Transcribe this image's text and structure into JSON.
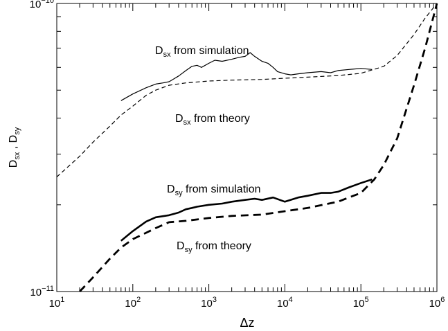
{
  "chart_data": {
    "type": "line",
    "xlabel": "Δz",
    "ylabel": {
      "D": "D",
      "sx": "sx",
      "sep": " , ",
      "sy": "sy"
    },
    "x_scale": "log",
    "y_scale": "log",
    "xlim": [
      10,
      1000000
    ],
    "ylim": [
      1e-11,
      1e-10
    ],
    "x_ticks": [
      {
        "value": 10,
        "base": "10",
        "exp": "1"
      },
      {
        "value": 100,
        "base": "10",
        "exp": "2"
      },
      {
        "value": 1000,
        "base": "10",
        "exp": "3"
      },
      {
        "value": 10000,
        "base": "10",
        "exp": "4"
      },
      {
        "value": 100000,
        "base": "10",
        "exp": "5"
      },
      {
        "value": 1000000,
        "base": "10",
        "exp": "6"
      }
    ],
    "y_ticks": [
      {
        "value": 1e-11,
        "base": "10",
        "exp": "−11"
      },
      {
        "value": 1e-10,
        "base": "10",
        "exp": "−10"
      }
    ],
    "grid": false,
    "series": [
      {
        "style": "solid-thin",
        "x": [
          70,
          100,
          150,
          200,
          250,
          300,
          400,
          500,
          600,
          700,
          800,
          1000,
          1200,
          1500,
          2000,
          2500,
          3000,
          3500,
          4000,
          5000,
          6000,
          7000,
          8000,
          10000,
          12000,
          15000,
          20000,
          30000,
          40000,
          50000,
          70000,
          100000,
          140000
        ],
        "y": [
          4.6e-11,
          4.85e-11,
          5.1e-11,
          5.25e-11,
          5.3e-11,
          5.35e-11,
          5.6e-11,
          5.85e-11,
          6.05e-11,
          6.1e-11,
          6e-11,
          6.2e-11,
          6.35e-11,
          6.3e-11,
          6.4e-11,
          6.5e-11,
          6.55e-11,
          6.75e-11,
          6.55e-11,
          6.3e-11,
          6.2e-11,
          6e-11,
          5.8e-11,
          5.7e-11,
          5.65e-11,
          5.7e-11,
          5.75e-11,
          5.8e-11,
          5.75e-11,
          5.85e-11,
          5.9e-11,
          5.95e-11,
          5.9e-11
        ]
      },
      {
        "style": "dashed-thin",
        "x": [
          10,
          20,
          30,
          50,
          70,
          100,
          150,
          200,
          300,
          500,
          1000,
          2000,
          5000,
          10000,
          20000,
          50000,
          100000,
          200000,
          300000,
          500000,
          700000,
          1000000
        ],
        "y": [
          2.5e-11,
          2.95e-11,
          3.3e-11,
          3.75e-11,
          4.1e-11,
          4.4e-11,
          4.8e-11,
          5e-11,
          5.2e-11,
          5.3e-11,
          5.38e-11,
          5.42e-11,
          5.45e-11,
          5.5e-11,
          5.55e-11,
          5.62e-11,
          5.72e-11,
          6.05e-11,
          6.6e-11,
          7.8e-11,
          8.9e-11,
          1e-10
        ]
      },
      {
        "style": "solid-thick",
        "x": [
          70,
          100,
          150,
          200,
          300,
          400,
          500,
          600,
          700,
          1000,
          1500,
          2000,
          3000,
          4000,
          5000,
          7000,
          10000,
          15000,
          20000,
          30000,
          40000,
          50000,
          70000,
          100000,
          140000
        ],
        "y": [
          1.5e-11,
          1.62e-11,
          1.75e-11,
          1.81e-11,
          1.84e-11,
          1.88e-11,
          1.93e-11,
          1.95e-11,
          1.97e-11,
          2e-11,
          2.02e-11,
          2.05e-11,
          2.08e-11,
          2.1e-11,
          2.08e-11,
          2.12e-11,
          2.05e-11,
          2.12e-11,
          2.15e-11,
          2.2e-11,
          2.2e-11,
          2.22e-11,
          2.3e-11,
          2.38e-11,
          2.45e-11
        ]
      },
      {
        "style": "dashed-thick",
        "x": [
          20,
          30,
          50,
          70,
          100,
          150,
          200,
          300,
          500,
          1000,
          2000,
          5000,
          10000,
          20000,
          50000,
          100000,
          150000,
          200000,
          300000,
          500000,
          700000,
          1000000
        ],
        "y": [
          1e-11,
          1.12e-11,
          1.3e-11,
          1.42e-11,
          1.52e-11,
          1.6e-11,
          1.66e-11,
          1.74e-11,
          1.76e-11,
          1.8e-11,
          1.83e-11,
          1.85e-11,
          1.9e-11,
          1.95e-11,
          2.05e-11,
          2.2e-11,
          2.45e-11,
          2.75e-11,
          3.4e-11,
          5.2e-11,
          7e-11,
          1e-10
        ]
      }
    ],
    "annotations": [
      {
        "id": "sx-sim",
        "main": "D",
        "sub": "sx",
        "rest": " from simulation"
      },
      {
        "id": "sx-theory",
        "main": "D",
        "sub": "sx",
        "rest": " from theory"
      },
      {
        "id": "sy-sim",
        "main": "D",
        "sub": "sy",
        "rest": " from simulation"
      },
      {
        "id": "sy-theory",
        "main": "D",
        "sub": "sy",
        "rest": " from theory"
      }
    ]
  }
}
